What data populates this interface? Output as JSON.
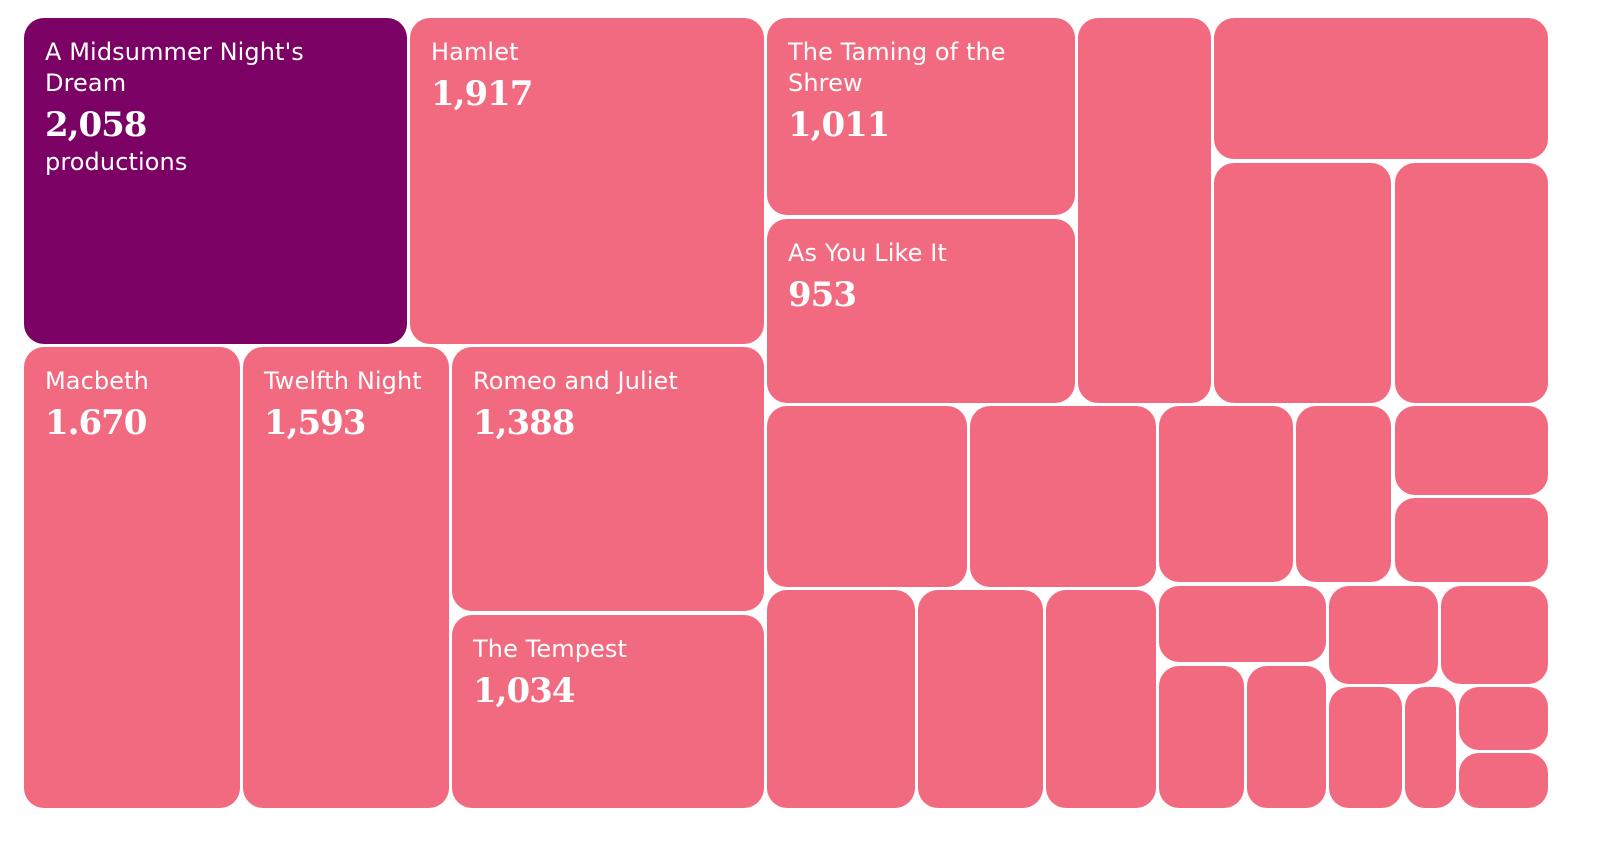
{
  "chart_data": {
    "type": "treemap",
    "unit": "productions",
    "color_default": "#f26a7f",
    "color_highlight": "#7b0164",
    "items": [
      {
        "name": "A Midsummer Night's Dream",
        "value": 2058,
        "value_label": "2,058",
        "highlight": true
      },
      {
        "name": "Hamlet",
        "value": 1917,
        "value_label": "1,917"
      },
      {
        "name": "The Taming of the Shrew",
        "value": 1011,
        "value_label": "1,011"
      },
      {
        "name": "As You Like It",
        "value": 953,
        "value_label": "953"
      },
      {
        "name": "Macbeth",
        "value": 1670,
        "value_label": "1.670"
      },
      {
        "name": "Twelfth Night",
        "value": 1593,
        "value_label": "1,593"
      },
      {
        "name": "Romeo and Juliet",
        "value": 1388,
        "value_label": "1,388"
      },
      {
        "name": "The Tempest",
        "value": 1034,
        "value_label": "1,034"
      },
      {
        "name": "",
        "value": null
      },
      {
        "name": "",
        "value": null
      },
      {
        "name": "",
        "value": null
      },
      {
        "name": "",
        "value": null
      },
      {
        "name": "",
        "value": null
      },
      {
        "name": "",
        "value": null
      },
      {
        "name": "",
        "value": null
      },
      {
        "name": "",
        "value": null
      },
      {
        "name": "",
        "value": null
      },
      {
        "name": "",
        "value": null
      },
      {
        "name": "",
        "value": null
      },
      {
        "name": "",
        "value": null
      },
      {
        "name": "",
        "value": null
      },
      {
        "name": "",
        "value": null
      },
      {
        "name": "",
        "value": null
      },
      {
        "name": "",
        "value": null
      },
      {
        "name": "",
        "value": null
      },
      {
        "name": "",
        "value": null
      },
      {
        "name": "",
        "value": null
      },
      {
        "name": "",
        "value": null
      },
      {
        "name": "",
        "value": null
      },
      {
        "name": "",
        "value": null
      },
      {
        "name": "",
        "value": null
      },
      {
        "name": "",
        "value": null
      }
    ]
  }
}
